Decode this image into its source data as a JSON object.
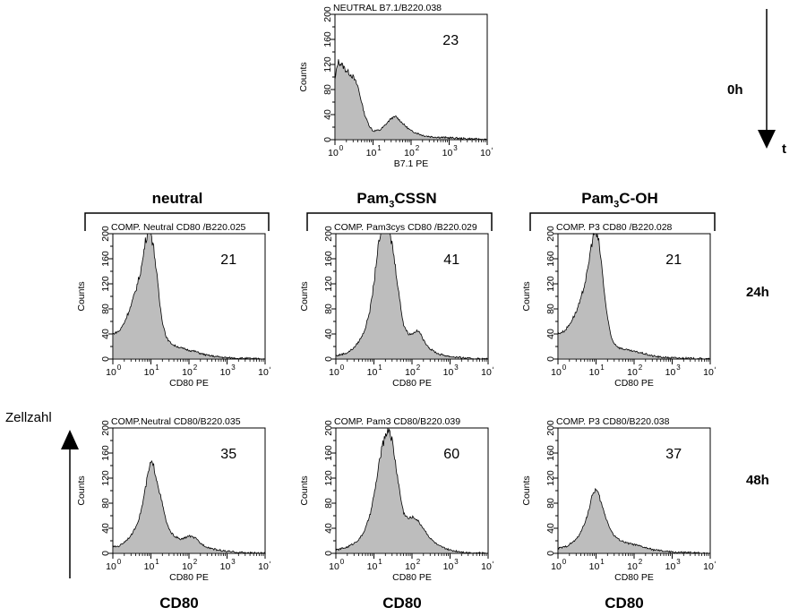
{
  "labels": {
    "time_axis": "t",
    "cell_count": "Zellzahl",
    "time_0": "0h",
    "time_24": "24h",
    "time_48": "48h",
    "col_neutral": "neutral",
    "col_pam3cssn_main": "Pam",
    "col_pam3cssn_sub": "3",
    "col_pam3cssn_rest": "CSSN",
    "col_pam3coh_main": "Pam",
    "col_pam3coh_sub": "3",
    "col_pam3coh_rest": "C-OH",
    "bottom_1": "CD80",
    "bottom_2": "CD80",
    "bottom_3": "CD80"
  },
  "colors": {
    "fill": "#bdbdbd",
    "stroke": "#000000"
  },
  "chart_data": [
    {
      "type": "area",
      "title": "NEUTRAL B7.1/B220.038",
      "xlabel": "B7.1  PE",
      "ylabel": "Counts",
      "xscale": "log",
      "xlim": [
        1,
        10000
      ],
      "ylim": [
        0,
        200
      ],
      "yticks": [
        0,
        40,
        80,
        120,
        160,
        200
      ],
      "percentage": "23",
      "x": [
        1,
        1.2,
        1.5,
        2,
        2.5,
        3,
        4,
        5,
        6,
        8,
        10,
        15,
        20,
        30,
        40,
        50,
        70,
        100,
        150,
        200,
        300,
        500,
        1000,
        2000,
        5000,
        10000
      ],
      "y": [
        95,
        125,
        120,
        110,
        105,
        100,
        85,
        60,
        40,
        22,
        14,
        15,
        22,
        34,
        37,
        31,
        22,
        14,
        10,
        7,
        5,
        4,
        3,
        2,
        1,
        0
      ]
    },
    {
      "type": "area",
      "title": "COMP. Neutral  CD80 /B220.025",
      "xlabel": "CD80  PE",
      "ylabel": "Counts",
      "xscale": "log",
      "xlim": [
        1,
        10000
      ],
      "ylim": [
        0,
        200
      ],
      "yticks": [
        0,
        40,
        80,
        120,
        160,
        200
      ],
      "percentage": "21",
      "x": [
        1,
        1.5,
        2,
        3,
        4,
        5,
        6,
        7,
        8,
        9,
        10,
        12,
        14,
        17,
        20,
        25,
        30,
        40,
        60,
        100,
        150,
        200,
        300,
        500,
        1000,
        3000,
        10000
      ],
      "y": [
        40,
        45,
        58,
        85,
        110,
        132,
        155,
        185,
        200,
        200,
        200,
        175,
        140,
        90,
        60,
        36,
        28,
        22,
        18,
        14,
        12,
        9,
        6,
        4,
        2,
        1,
        0
      ]
    },
    {
      "type": "area",
      "title": "COMP. Pam3cys  CD80 /B220.029",
      "xlabel": "CD80  PE",
      "ylabel": "Counts",
      "xscale": "log",
      "xlim": [
        1,
        10000
      ],
      "ylim": [
        0,
        200
      ],
      "yticks": [
        0,
        40,
        80,
        120,
        160,
        200
      ],
      "percentage": "41",
      "x": [
        1,
        2,
        3,
        4,
        5,
        6,
        8,
        10,
        12,
        15,
        20,
        25,
        30,
        40,
        50,
        60,
        80,
        100,
        130,
        160,
        200,
        300,
        500,
        1000,
        3000,
        10000
      ],
      "y": [
        5,
        10,
        18,
        28,
        38,
        50,
        80,
        120,
        165,
        200,
        200,
        200,
        185,
        130,
        85,
        55,
        40,
        40,
        45,
        43,
        30,
        16,
        8,
        4,
        1,
        0
      ]
    },
    {
      "type": "area",
      "title": "COMP. P3  CD80 /B220.028",
      "xlabel": "CD80  PE",
      "ylabel": "Counts",
      "xscale": "log",
      "xlim": [
        1,
        10000
      ],
      "ylim": [
        0,
        200
      ],
      "yticks": [
        0,
        40,
        80,
        120,
        160,
        200
      ],
      "percentage": "21",
      "x": [
        1,
        1.5,
        2,
        3,
        4,
        5,
        6,
        7,
        8,
        9,
        10,
        12,
        14,
        17,
        20,
        25,
        30,
        40,
        60,
        100,
        150,
        200,
        300,
        500,
        1000,
        3000,
        10000
      ],
      "y": [
        40,
        45,
        55,
        75,
        95,
        120,
        140,
        170,
        190,
        200,
        200,
        185,
        150,
        100,
        65,
        35,
        25,
        18,
        15,
        12,
        10,
        8,
        5,
        3,
        2,
        1,
        0
      ]
    },
    {
      "type": "area",
      "title": "COMP.Neutral CD80/B220.035",
      "xlabel": "CD80  PE",
      "ylabel": "Counts",
      "xscale": "log",
      "xlim": [
        1,
        10000
      ],
      "ylim": [
        0,
        200
      ],
      "yticks": [
        0,
        40,
        80,
        120,
        160,
        200
      ],
      "percentage": "35",
      "x": [
        1,
        1.5,
        2,
        3,
        4,
        5,
        6,
        7,
        8,
        9,
        10,
        12,
        15,
        20,
        25,
        30,
        40,
        60,
        80,
        100,
        150,
        200,
        300,
        500,
        1000,
        3000,
        10000
      ],
      "y": [
        10,
        12,
        18,
        28,
        42,
        58,
        78,
        100,
        120,
        135,
        145,
        138,
        112,
        78,
        52,
        38,
        28,
        22,
        25,
        28,
        24,
        16,
        10,
        6,
        3,
        1,
        0
      ]
    },
    {
      "type": "area",
      "title": "COMP. Pam3 CD80/B220.039",
      "xlabel": "CD80  PE",
      "ylabel": "Counts",
      "xscale": "log",
      "xlim": [
        1,
        10000
      ],
      "ylim": [
        0,
        200
      ],
      "yticks": [
        0,
        40,
        80,
        120,
        160,
        200
      ],
      "percentage": "60",
      "x": [
        1,
        2,
        3,
        4,
        5,
        6,
        8,
        10,
        12,
        15,
        20,
        25,
        30,
        40,
        50,
        60,
        80,
        100,
        130,
        160,
        200,
        300,
        500,
        1000,
        3000,
        10000
      ],
      "y": [
        5,
        10,
        16,
        22,
        30,
        40,
        62,
        92,
        120,
        158,
        190,
        200,
        180,
        130,
        90,
        65,
        55,
        58,
        55,
        48,
        40,
        24,
        12,
        5,
        1,
        0
      ]
    },
    {
      "type": "area",
      "title": "COMP. P3 CD80/B220.038",
      "xlabel": "CD80  PE",
      "ylabel": "Counts",
      "xscale": "log",
      "xlim": [
        1,
        10000
      ],
      "ylim": [
        0,
        200
      ],
      "yticks": [
        0,
        40,
        80,
        120,
        160,
        200
      ],
      "percentage": "37",
      "x": [
        1,
        1.5,
        2,
        3,
        4,
        5,
        6,
        7,
        8,
        9,
        10,
        12,
        15,
        20,
        25,
        30,
        40,
        60,
        100,
        150,
        200,
        300,
        500,
        1000,
        3000,
        10000
      ],
      "y": [
        8,
        10,
        14,
        22,
        34,
        48,
        62,
        78,
        92,
        100,
        102,
        92,
        72,
        50,
        36,
        28,
        22,
        17,
        14,
        11,
        9,
        6,
        4,
        2,
        1,
        0
      ]
    }
  ]
}
